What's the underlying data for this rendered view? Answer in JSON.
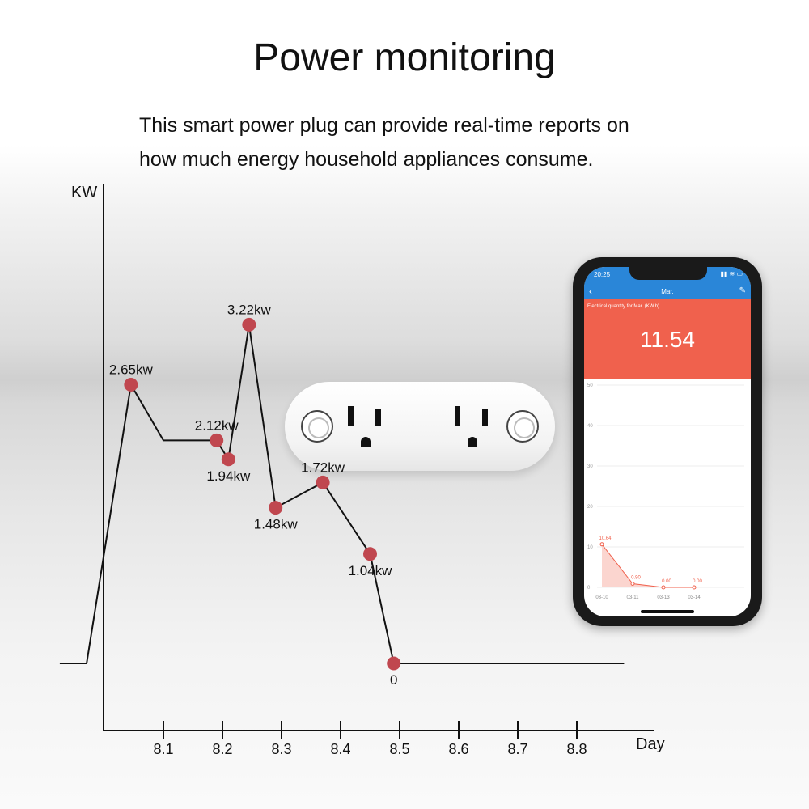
{
  "header": {
    "title": "Power monitoring",
    "subtitle_line1": "This smart power plug can provide real-time reports on",
    "subtitle_line2": "how much energy household appliances consume."
  },
  "chart_data": [
    {
      "type": "line",
      "xlabel": "Day",
      "ylabel": "KW",
      "x_ticks": [
        "8.1",
        "8.2",
        "8.3",
        "8.4",
        "8.5",
        "8.6",
        "8.7",
        "8.8"
      ],
      "x_range": [
        7.97,
        8.88
      ],
      "y_range": [
        0,
        4.3
      ],
      "baseline_start": [
        [
          7.93,
          0
        ],
        [
          7.97,
          0
        ]
      ],
      "series": [
        {
          "x": [
            7.97,
            8.045,
            8.1,
            8.19,
            8.21,
            8.245,
            8.29,
            8.37,
            8.45,
            8.49,
            8.88
          ],
          "y": [
            0,
            2.65,
            2.12,
            2.12,
            1.94,
            3.22,
            1.48,
            1.72,
            1.04,
            0,
            0
          ],
          "marked": [
            false,
            true,
            false,
            true,
            true,
            true,
            true,
            true,
            true,
            true,
            false
          ],
          "labels": [
            "",
            "2.65kw",
            "",
            "2.12kw",
            "1.94kw",
            "3.22kw",
            "1.48kw",
            "1.72kw",
            "1.04kw",
            "0",
            ""
          ]
        }
      ],
      "marker_color": "#c0474f",
      "line_color": "#111111"
    },
    {
      "type": "area",
      "title": "Electrical quantity for Mar. (KW.h)",
      "categories": [
        "03-10",
        "03-11",
        "03-13",
        "03-14"
      ],
      "values": [
        10.64,
        0.9,
        0.0,
        0.0
      ],
      "labels": [
        "10.64",
        "0.90",
        "0.00",
        "0.00"
      ],
      "y_ticks": [
        0,
        10,
        20,
        30,
        40,
        50
      ],
      "ylim": [
        0,
        50
      ],
      "color": "#f0614d"
    }
  ],
  "phone": {
    "time": "20:25",
    "nav_title": "Mar.",
    "back_icon": "chevron-left-icon",
    "edit_icon": "pencil-icon",
    "big_value": "11.54"
  },
  "colors": {
    "accent_red": "#f0614d",
    "statusbar_blue": "#2a86d8"
  }
}
